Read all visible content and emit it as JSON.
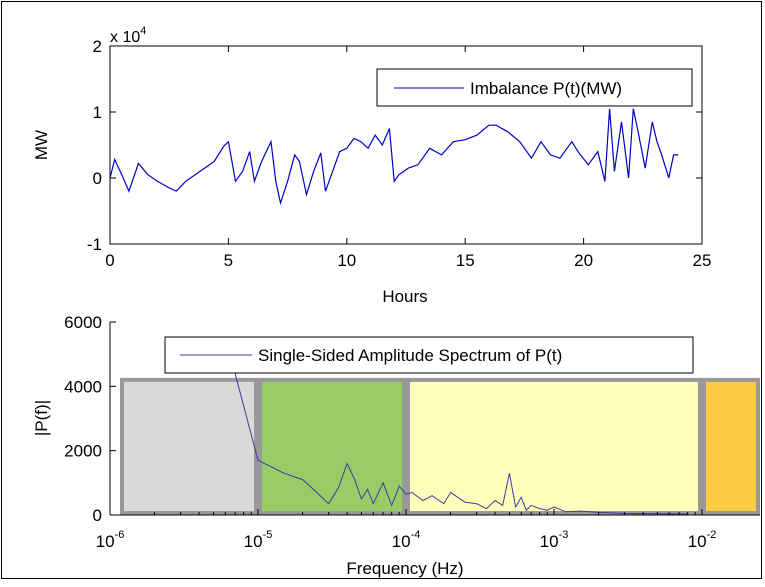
{
  "chart_data": [
    {
      "type": "line",
      "title": "",
      "xlabel": "Hours",
      "ylabel": "MW",
      "y_exponent_label": "x 10",
      "y_exponent_power": "4",
      "xlim": [
        0,
        25
      ],
      "ylim": [
        -1,
        2
      ],
      "xticks": [
        "0",
        "5",
        "10",
        "15",
        "20",
        "25"
      ],
      "yticks": [
        "-1",
        "0",
        "1",
        "2"
      ],
      "legend": "top-right",
      "color": "#0000cc",
      "series": [
        {
          "name": "Imbalance P(t)(MW)",
          "x": [
            0.0,
            0.2,
            0.5,
            0.8,
            1.2,
            1.6,
            2.0,
            2.5,
            2.8,
            3.2,
            3.8,
            4.4,
            4.8,
            5.0,
            5.3,
            5.6,
            5.9,
            6.1,
            6.4,
            6.8,
            7.0,
            7.2,
            7.5,
            7.8,
            8.0,
            8.3,
            8.6,
            8.9,
            9.1,
            9.4,
            9.7,
            10.0,
            10.3,
            10.6,
            10.9,
            11.2,
            11.5,
            11.8,
            12.0,
            12.2,
            12.6,
            13.0,
            13.5,
            14.0,
            14.5,
            15.0,
            15.5,
            16.0,
            16.3,
            16.8,
            17.3,
            17.8,
            18.2,
            18.6,
            19.0,
            19.5,
            19.8,
            20.2,
            20.6,
            20.9,
            21.1,
            21.3,
            21.6,
            21.9,
            22.1,
            22.3,
            22.6,
            22.9,
            23.1,
            23.3,
            23.6,
            23.8,
            24.0
          ],
          "values": [
            0.0,
            0.28,
            0.05,
            -0.2,
            0.22,
            0.05,
            -0.05,
            -0.15,
            -0.2,
            -0.05,
            0.1,
            0.25,
            0.48,
            0.55,
            -0.05,
            0.1,
            0.4,
            -0.05,
            0.25,
            0.55,
            -0.05,
            -0.38,
            -0.05,
            0.35,
            0.25,
            -0.25,
            0.1,
            0.38,
            -0.2,
            0.1,
            0.4,
            0.45,
            0.6,
            0.55,
            0.45,
            0.65,
            0.5,
            0.75,
            -0.05,
            0.05,
            0.15,
            0.2,
            0.45,
            0.35,
            0.55,
            0.58,
            0.65,
            0.8,
            0.8,
            0.7,
            0.55,
            0.3,
            0.55,
            0.35,
            0.3,
            0.55,
            0.38,
            0.2,
            0.4,
            -0.05,
            1.05,
            0.1,
            0.85,
            0.0,
            1.05,
            0.7,
            0.15,
            0.85,
            0.55,
            0.35,
            0.0,
            0.35,
            0.35
          ]
        }
      ]
    },
    {
      "type": "line",
      "title": "",
      "xlabel": "Frequency (Hz)",
      "ylabel": "|P(f)|",
      "xscale": "log",
      "xlim": [
        1e-06,
        0.01
      ],
      "ylim": [
        0,
        6000
      ],
      "xtick_base": "10",
      "xtick_powers": [
        "-6",
        "-5",
        "-4",
        "-3",
        "-2"
      ],
      "yticks": [
        "0",
        "2000",
        "4000",
        "6000"
      ],
      "legend": "top-center",
      "color": "#3b3ba0",
      "bands": [
        {
          "from": 1e-06,
          "to": 1e-05,
          "color": "#d9d9d9"
        },
        {
          "from": 1e-05,
          "to": 0.0001,
          "color": "#99cc66"
        },
        {
          "from": 0.0001,
          "to": 0.01,
          "color": "#ffffbb"
        },
        {
          "from": 0.01,
          "to": 0.02,
          "color": "#ffcc44"
        }
      ],
      "series": [
        {
          "name": "Single-Sided Amplitude Spectrum of P(t)",
          "x": [
            7e-06,
            1e-05,
            1.5e-05,
            2e-05,
            2.5e-05,
            3e-05,
            3.5e-05,
            4e-05,
            4.5e-05,
            5e-05,
            5.5e-05,
            6e-05,
            7e-05,
            8e-05,
            9e-05,
            0.0001,
            0.00011,
            0.00013,
            0.00015,
            0.00018,
            0.0002,
            0.00025,
            0.0003,
            0.00035,
            0.0004,
            0.00045,
            0.0005,
            0.00055,
            0.0006,
            0.00065,
            0.0007,
            0.0008,
            0.0009,
            0.001,
            0.0012,
            0.0015,
            0.002,
            0.003,
            0.005,
            0.008
          ],
          "values": [
            4400,
            1700,
            1300,
            1100,
            700,
            350,
            850,
            1600,
            1100,
            500,
            800,
            350,
            1000,
            300,
            900,
            650,
            700,
            450,
            600,
            350,
            700,
            400,
            350,
            200,
            450,
            300,
            1300,
            250,
            550,
            150,
            300,
            200,
            150,
            250,
            100,
            120,
            80,
            50,
            40,
            30
          ]
        }
      ]
    }
  ]
}
